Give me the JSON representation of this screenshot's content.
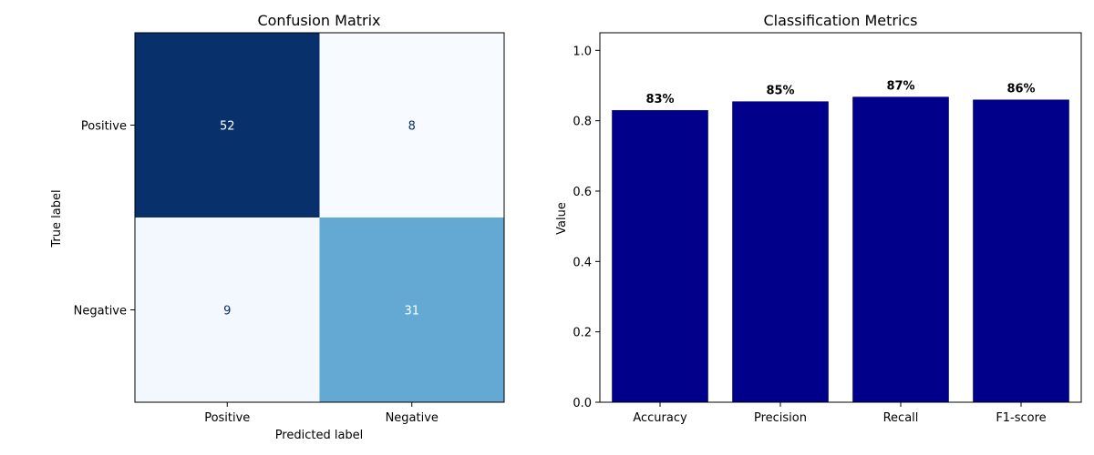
{
  "chart_data": [
    {
      "type": "heatmap",
      "title": "Confusion Matrix",
      "xlabel": "Predicted label",
      "ylabel": "True label",
      "x_categories": [
        "Positive",
        "Negative"
      ],
      "y_categories": [
        "Positive",
        "Negative"
      ],
      "values": [
        [
          52,
          8
        ],
        [
          9,
          31
        ]
      ],
      "colormap": "Blues",
      "colors": {
        "low": "#f7fbff",
        "high": "#08306b",
        "text_light": "#ffffff",
        "text_dark": "#08306b"
      }
    },
    {
      "type": "bar",
      "title": "Classification Metrics",
      "xlabel": "",
      "ylabel": "Value",
      "categories": [
        "Accuracy",
        "Precision",
        "Recall",
        "F1-score"
      ],
      "values": [
        0.83,
        0.855,
        0.868,
        0.86
      ],
      "labels": [
        "83%",
        "85%",
        "87%",
        "86%"
      ],
      "ylim": [
        0,
        1.05
      ],
      "yticks": [
        "0.0",
        "0.2",
        "0.4",
        "0.6",
        "0.8",
        "1.0"
      ],
      "bar_color": "#00008b"
    }
  ]
}
